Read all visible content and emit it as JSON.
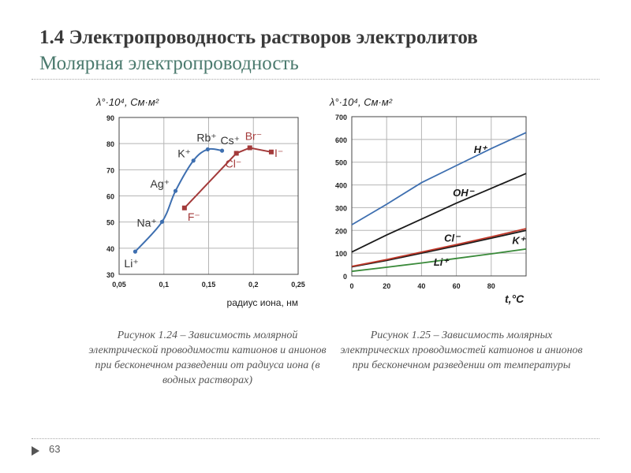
{
  "slide": {
    "title": "1.4 Электропроводность растворов электролитов",
    "subtitle": "Молярная электропроводность",
    "page_number": "63"
  },
  "chart_data": [
    {
      "type": "line",
      "ylabel": "λ°·10⁴, См·м²",
      "xlabel": "радиус иона, нм",
      "xlim": [
        0.05,
        0.25
      ],
      "ylim": [
        30,
        90
      ],
      "x_ticks": [
        "0,05",
        "0,1",
        "0,15",
        "0,2",
        "0,25"
      ],
      "y_ticks": [
        "30",
        "40",
        "50",
        "60",
        "70",
        "80",
        "90"
      ],
      "grid": true,
      "series": [
        {
          "name": "",
          "color": "#3e6fb0",
          "marker": "circle",
          "points": [
            {
              "x": 0.068,
              "y": 38.7,
              "label": "Li⁺"
            },
            {
              "x": 0.098,
              "y": 50.1,
              "label": "Na⁺"
            },
            {
              "x": 0.113,
              "y": 61.9,
              "label": "Ag⁺"
            },
            {
              "x": 0.133,
              "y": 73.5,
              "label": "K⁺"
            },
            {
              "x": 0.149,
              "y": 77.8,
              "label": "Rb⁺"
            },
            {
              "x": 0.165,
              "y": 77.3,
              "label": "Cs⁺"
            }
          ]
        },
        {
          "name": "",
          "color": "#a33a3a",
          "marker": "square",
          "points": [
            {
              "x": 0.123,
              "y": 55.4,
              "label": "F⁻"
            },
            {
              "x": 0.181,
              "y": 76.3,
              "label": "Cl⁻"
            },
            {
              "x": 0.196,
              "y": 78.4,
              "label": "Br⁻"
            },
            {
              "x": 0.22,
              "y": 76.8,
              "label": "I⁻"
            }
          ]
        }
      ],
      "caption": "Рисунок 1.24 – Зависимость молярной электрической проводимости катионов и анионов при бесконечном разведении от радиуса иона (в водных растворах)"
    },
    {
      "type": "line",
      "ylabel": "λ°·10⁴, См·м²",
      "xlabel": "t,°C",
      "xlim": [
        0,
        100
      ],
      "ylim": [
        0,
        700
      ],
      "x_ticks": [
        "0",
        "20",
        "40",
        "60",
        "80"
      ],
      "y_ticks": [
        "0",
        "100",
        "200",
        "300",
        "400",
        "500",
        "600",
        "700"
      ],
      "grid": true,
      "series": [
        {
          "name": "H⁺",
          "color": "#3e6fb0",
          "x": [
            0,
            20,
            40,
            60,
            80,
            100
          ],
          "y": [
            225,
            315,
            410,
            485,
            560,
            630
          ]
        },
        {
          "name": "OH⁻",
          "color": "#1a1a1a",
          "x": [
            0,
            20,
            40,
            60,
            80,
            100
          ],
          "y": [
            105,
            180,
            250,
            320,
            385,
            450
          ]
        },
        {
          "name": "Cl⁻",
          "color": "#1a1a1a",
          "x": [
            0,
            20,
            40,
            60,
            80,
            100
          ],
          "y": [
            40,
            68,
            100,
            132,
            166,
            200
          ]
        },
        {
          "name": "K⁺",
          "color": "#c0392b",
          "x": [
            0,
            20,
            40,
            60,
            80,
            100
          ],
          "y": [
            42,
            72,
            105,
            138,
            172,
            208
          ]
        },
        {
          "name": "Li⁺",
          "color": "#3a8a3a",
          "x": [
            0,
            20,
            40,
            60,
            80,
            100
          ],
          "y": [
            20,
            38,
            57,
            77,
            97,
            118
          ]
        }
      ],
      "caption": "Рисунок 1.25 – Зависимость молярных электрических проводимостей катионов и анионов при бесконечном разведении от температуры"
    }
  ]
}
